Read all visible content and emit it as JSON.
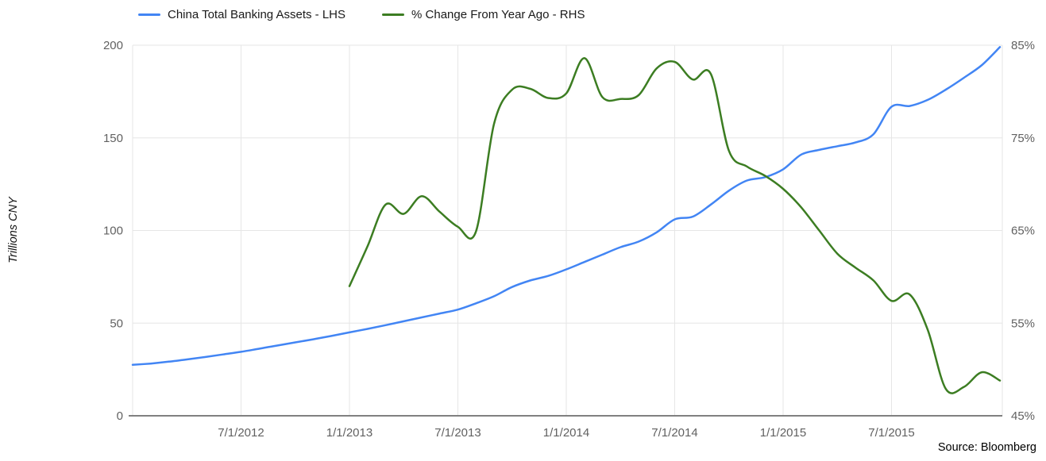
{
  "chart_data": {
    "type": "line",
    "title": "",
    "source": "Source: Bloomberg",
    "colors": {
      "grid": "#e6e6e6",
      "axis_line": "#808080",
      "tick_text": "#616161",
      "legend_text": "#1a1a1a"
    },
    "legend_position": "top",
    "grid": true,
    "left_axis": {
      "title": "Trillions CNY",
      "tick_labels": [
        "0",
        "50",
        "100",
        "150",
        "200"
      ],
      "tick_values": [
        0,
        50,
        100,
        150,
        200
      ],
      "range": [
        0,
        200
      ]
    },
    "right_axis": {
      "tick_labels": [
        "45%",
        "55%",
        "65%",
        "75%",
        "85%"
      ],
      "tick_values": [
        45,
        55,
        65,
        75,
        85
      ],
      "range": [
        45,
        85
      ]
    },
    "x_axis": {
      "tick_labels": [
        "7/1/2012",
        "1/1/2013",
        "7/1/2013",
        "1/1/2014",
        "7/1/2014",
        "1/1/2015",
        "7/1/2015"
      ],
      "tick_month_indices": [
        6,
        12,
        18,
        24,
        30,
        36,
        42
      ],
      "start_date": "1/1/2012",
      "end_date": "1/1/2016",
      "frequency": "monthly",
      "total_month_span": 48
    },
    "series": [
      {
        "name": "China Total Banking Assets - LHS",
        "axis": "left",
        "color": "#4285f4",
        "start_index": 0,
        "values": [
          27.5,
          28.2,
          29.2,
          30.4,
          31.7,
          33.1,
          34.5,
          36.2,
          37.9,
          39.6,
          41.3,
          43.1,
          45,
          46.9,
          48.9,
          51,
          53.1,
          55.2,
          57.3,
          60.7,
          64.5,
          69.5,
          73,
          75.5,
          79,
          83,
          87,
          91,
          94,
          99,
          106,
          107.5,
          114,
          121.5,
          127,
          128.8,
          133,
          141,
          143.5,
          145.5,
          147.5,
          152,
          166.8,
          167.2,
          170.5,
          176,
          182.4,
          189.3,
          199
        ]
      },
      {
        "name": "% Change From Year Ago - RHS",
        "axis": "right",
        "color": "#3c7d22",
        "start_index": 12,
        "values": [
          59,
          63.3,
          67.8,
          66.8,
          68.7,
          67,
          65.4,
          64.9,
          76.5,
          80.2,
          80.3,
          79.3,
          79.8,
          83.6,
          79.4,
          79.2,
          79.6,
          82.5,
          83.2,
          81.3,
          81.9,
          73.6,
          71.9,
          70.9,
          69.5,
          67.5,
          65,
          62.5,
          61,
          59.6,
          57.4,
          58.1,
          54.3,
          47.9,
          48.1,
          49.7,
          48.8
        ]
      }
    ]
  },
  "legend": {
    "item1": "China Total Banking Assets - LHS",
    "item2": "% Change From Year Ago - RHS"
  },
  "y_axis_title": "Trillions CNY",
  "source_label": "Source: Bloomberg"
}
